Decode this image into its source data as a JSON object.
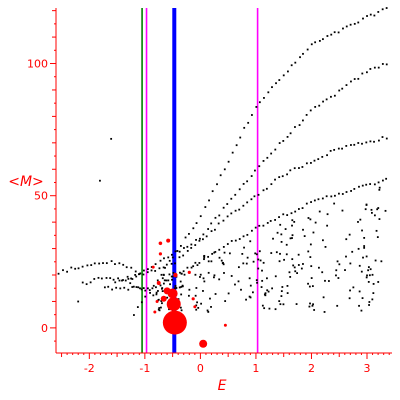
{
  "chart_data": {
    "type": "scatter",
    "xlabel": "E",
    "ylabel": "<M>",
    "xlim": [
      -2.6,
      3.45
    ],
    "ylim": [
      -9.5,
      121
    ],
    "xticks": [
      "-2",
      "-1",
      "0",
      "1",
      "2",
      "3"
    ],
    "yticks": [
      "0",
      "50",
      "100"
    ],
    "grid": false,
    "colors": {
      "axis": "#ff0000",
      "points": "#000000",
      "highlight": "#ff0000",
      "green_line": "#008000",
      "magenta_line": "#ff00ff",
      "blue_line": "#0000ff"
    },
    "vertical_lines": [
      {
        "x": -1.05,
        "color": "#008000",
        "width": "thin"
      },
      {
        "x": -0.97,
        "color": "#ff00ff",
        "width": "thin"
      },
      {
        "x": -0.47,
        "color": "#0000ff",
        "width": "thick"
      },
      {
        "x": 1.03,
        "color": "#ff00ff",
        "width": "thin"
      }
    ],
    "branches": [
      {
        "x_range": [
          -1.2,
          3.35
        ],
        "y_at": [
          [
            -1.2,
            5
          ],
          [
            0,
            42
          ],
          [
            1,
            84
          ],
          [
            2,
            107
          ],
          [
            3.35,
            121
          ]
        ]
      },
      {
        "x_range": [
          -1.3,
          3.35
        ],
        "y_at": [
          [
            -1.3,
            18
          ],
          [
            0,
            34
          ],
          [
            1,
            60
          ],
          [
            2,
            82
          ],
          [
            3,
            97
          ],
          [
            3.35,
            100
          ]
        ]
      },
      {
        "x_range": [
          -1.6,
          3.35
        ],
        "y_at": [
          [
            -1.6,
            17
          ],
          [
            -0.5,
            24
          ],
          [
            0.5,
            42
          ],
          [
            1.5,
            58
          ],
          [
            2.5,
            68
          ],
          [
            3.35,
            72
          ]
        ]
      },
      {
        "x_range": [
          -1.8,
          3.35
        ],
        "y_at": [
          [
            -1.8,
            15
          ],
          [
            -0.8,
            15
          ],
          [
            0.2,
            28
          ],
          [
            1.2,
            40
          ],
          [
            2.2,
            49
          ],
          [
            3.35,
            56
          ]
        ]
      },
      {
        "x_range": [
          -2.55,
          -1.1
        ],
        "y_at": [
          [
            -2.55,
            21
          ],
          [
            -2.0,
            24
          ],
          [
            -1.6,
            25
          ],
          [
            -1.3,
            23
          ],
          [
            -1.1,
            20
          ]
        ]
      },
      {
        "x_range": [
          -2.2,
          -0.7
        ],
        "y_at": [
          [
            -2.2,
            16
          ],
          [
            -1.8,
            19
          ],
          [
            -1.4,
            18
          ],
          [
            -1.0,
            14
          ],
          [
            -0.7,
            10
          ]
        ]
      }
    ],
    "cloud_region": {
      "x_range": [
        -0.8,
        3.35
      ],
      "y_range": [
        6,
        55
      ],
      "count": 260
    },
    "highlight_points": [
      {
        "x": -0.46,
        "y": 2,
        "r": 12
      },
      {
        "x": -0.48,
        "y": 9,
        "r": 7
      },
      {
        "x": -0.5,
        "y": 13,
        "r": 5
      },
      {
        "x": -0.6,
        "y": 14,
        "r": 3.5
      },
      {
        "x": -0.66,
        "y": 11,
        "r": 3
      },
      {
        "x": 0.05,
        "y": -6,
        "r": 4
      },
      {
        "x": -0.58,
        "y": 33,
        "r": 2
      },
      {
        "x": -0.72,
        "y": 32,
        "r": 1.8
      },
      {
        "x": -0.72,
        "y": 28,
        "r": 1.6
      },
      {
        "x": -0.75,
        "y": 17,
        "r": 2
      },
      {
        "x": -0.45,
        "y": 20,
        "r": 2.2
      },
      {
        "x": -0.2,
        "y": 21,
        "r": 1.6
      },
      {
        "x": -0.13,
        "y": 11,
        "r": 1.6
      },
      {
        "x": -0.1,
        "y": 8,
        "r": 1.5
      },
      {
        "x": 0.45,
        "y": 1,
        "r": 1.5
      },
      {
        "x": -0.78,
        "y": 10,
        "r": 1.5
      },
      {
        "x": -0.82,
        "y": 6,
        "r": 1.5
      },
      {
        "x": -0.85,
        "y": 23,
        "r": 1.5
      }
    ]
  }
}
